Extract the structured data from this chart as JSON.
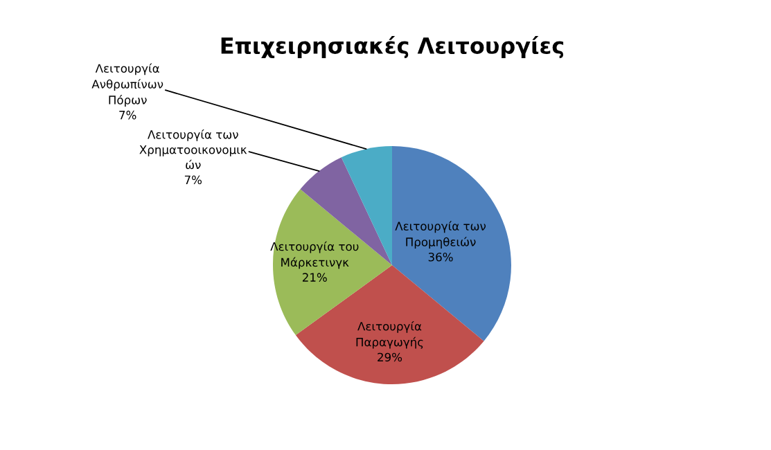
{
  "chart_data": {
    "type": "pie",
    "title": "Επιχειρησιακές Λειτουργίες",
    "categories": [
      "Λειτουργία των\nΠρομηθειών",
      "Λειτουργία\nΠαραγωγής",
      "Λειτουργία του\nΜάρκετινγκ",
      "Λειτουργία των\nΧρηματοοικονομικ\nών",
      "Λειτουργία\nΑνθρωπίνων\nΠόρων"
    ],
    "values": [
      36,
      29,
      21,
      7,
      7
    ],
    "colors": [
      "#4f81bd",
      "#c0504d",
      "#9bbb59",
      "#8064a2",
      "#4bacc6"
    ],
    "value_labels": [
      "36%",
      "29%",
      "21%",
      "7%",
      "7%"
    ],
    "legend": false
  }
}
